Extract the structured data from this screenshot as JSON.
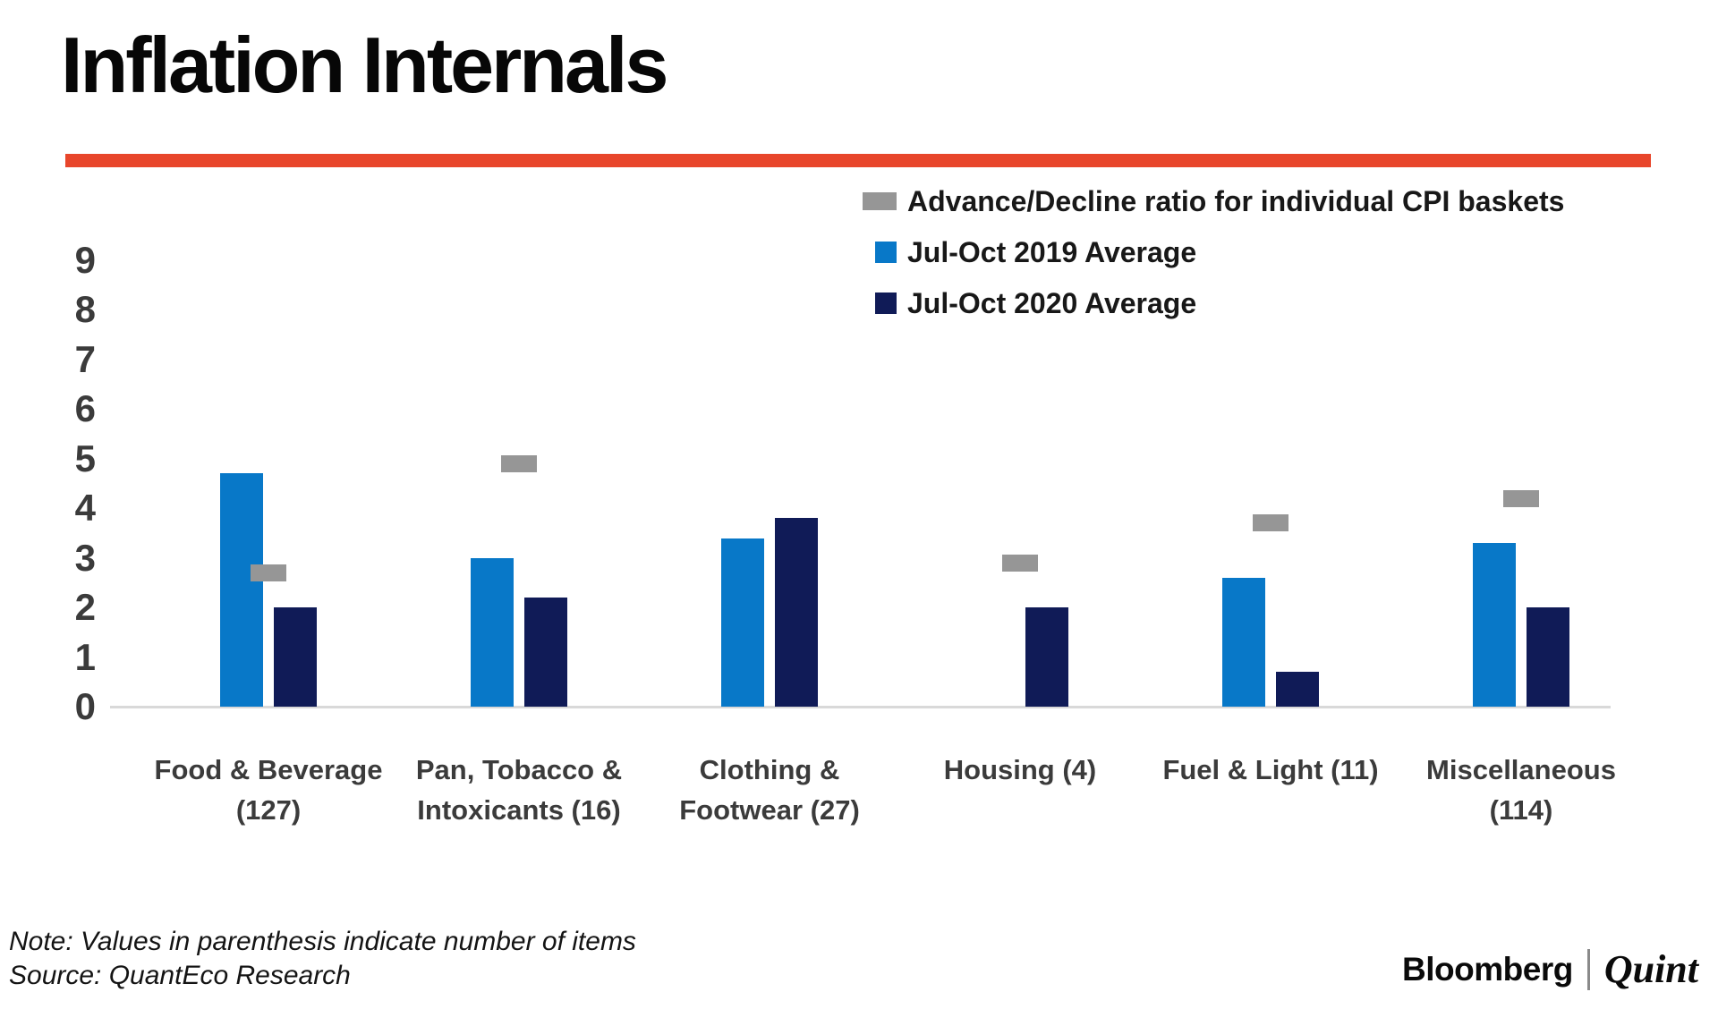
{
  "title": "Inflation Internals",
  "legend": {
    "items": [
      {
        "label": "Advance/Decline ratio for individual CPI baskets",
        "swatch": "gray-dash-swatch"
      },
      {
        "label": "Jul-Oct 2019 Average",
        "swatch": "blue-square-swatch"
      },
      {
        "label": "Jul-Oct 2020 Average",
        "swatch": "navy-square-swatch"
      }
    ]
  },
  "chart_data": {
    "type": "bar",
    "title": "Inflation Internals",
    "categories": [
      "Food & Beverage (127)",
      "Pan, Tobacco & Intoxicants (16)",
      "Clothing & Footwear (27)",
      "Housing (4)",
      "Fuel & Light (11)",
      "Miscellaneous (114)"
    ],
    "series": [
      {
        "name": "Advance/Decline ratio for individual CPI baskets",
        "type": "dash-marker",
        "color": "#969696",
        "values": [
          2.7,
          4.9,
          null,
          2.9,
          3.7,
          4.2
        ]
      },
      {
        "name": "Jul-Oct 2019 Average",
        "type": "bar",
        "color": "#0878c8",
        "values": [
          4.7,
          3.0,
          3.4,
          null,
          2.6,
          3.3
        ]
      },
      {
        "name": "Jul-Oct 2020 Average",
        "type": "bar",
        "color": "#101b57",
        "values": [
          2.0,
          2.2,
          3.8,
          2.0,
          0.7,
          2.0
        ]
      }
    ],
    "xlabel": "",
    "ylabel": "",
    "ylim": [
      0,
      9
    ],
    "yticks": [
      0,
      1,
      2,
      3,
      4,
      5,
      6,
      7,
      8,
      9
    ],
    "grid": false,
    "legend_position": "top-right"
  },
  "note": "Note: Values in parenthesis indicate number of items",
  "source": "Source: QuantEco Research",
  "branding": {
    "left": "Bloomberg",
    "right": "Quint"
  },
  "colors": {
    "accent_rule": "#e8462b",
    "bar_2019": "#0878c8",
    "bar_2020": "#101b57",
    "adv_decline": "#969696",
    "axis_line": "#d9d9d9",
    "axis_text": "#3b3b3b"
  }
}
